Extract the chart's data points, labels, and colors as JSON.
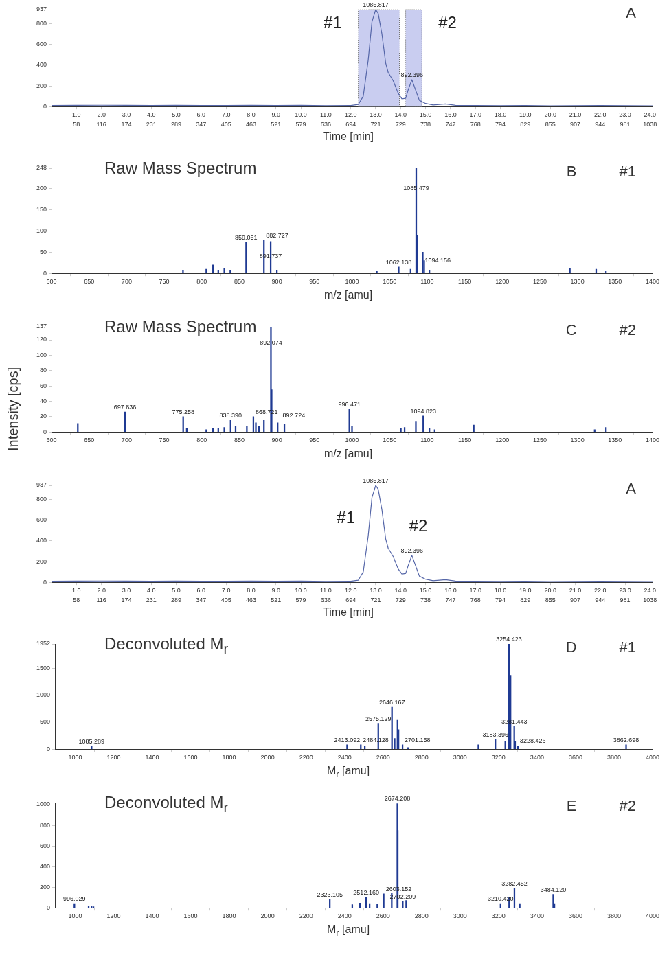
{
  "chart_data": [
    {
      "type": "line",
      "xlabel": "Time [min]",
      "xlim": [
        0,
        24.1
      ],
      "ylim": [
        0,
        937
      ],
      "yticks": [
        0,
        200,
        400,
        600,
        800,
        937
      ],
      "xticks": [
        {
          "value": 1,
          "label": "1.0"
        },
        {
          "value": 2,
          "label": "2.0"
        },
        {
          "value": 3,
          "label": "3.0"
        },
        {
          "value": 4,
          "label": "4.0"
        },
        {
          "value": 5,
          "label": "5.0"
        },
        {
          "value": 6,
          "label": "6.0"
        },
        {
          "value": 7,
          "label": "7.0"
        },
        {
          "value": 8,
          "label": "8.0"
        },
        {
          "value": 9,
          "label": "9.0"
        },
        {
          "value": 10,
          "label": "10.0"
        },
        {
          "value": 11,
          "label": "11.0"
        },
        {
          "value": 12,
          "label": "12.0"
        },
        {
          "value": 13,
          "label": "13.0"
        },
        {
          "value": 14,
          "label": "14.0"
        },
        {
          "value": 15,
          "label": "15.0"
        },
        {
          "value": 16,
          "label": "16.0"
        },
        {
          "value": 17,
          "label": "17.0"
        },
        {
          "value": 18,
          "label": "18.0"
        },
        {
          "value": 19,
          "label": "19.0"
        },
        {
          "value": 20,
          "label": "20.0"
        },
        {
          "value": 21,
          "label": "21.0"
        },
        {
          "value": 22,
          "label": "22.0"
        },
        {
          "value": 23,
          "label": "23.0"
        },
        {
          "value": 24,
          "label": "24.0"
        }
      ],
      "series": [
        {
          "color": "#5566a8",
          "x": [
            0,
            1,
            2,
            3,
            4,
            5,
            6,
            7,
            8,
            9,
            10,
            11,
            12,
            12.3,
            12.5,
            12.7,
            12.85,
            13.0,
            13.1,
            13.25,
            13.4,
            13.5,
            13.7,
            13.9,
            14.05,
            14.2,
            14.3,
            14.45,
            14.6,
            14.75,
            15.0,
            15.3,
            15.8,
            16.2,
            17,
            18,
            19,
            20,
            21,
            22,
            23,
            24.1
          ],
          "values": [
            10,
            12,
            13,
            12,
            11,
            12,
            11,
            10,
            12,
            10,
            12,
            9,
            10,
            20,
            100,
            450,
            820,
            937,
            900,
            700,
            420,
            330,
            250,
            130,
            75,
            80,
            160,
            260,
            160,
            60,
            30,
            15,
            25,
            12,
            10,
            9,
            10,
            8,
            9,
            10,
            9,
            8
          ]
        }
      ],
      "bands": [
        {
          "axis": "x",
          "from": 12.3,
          "to": 13.95,
          "label": "#1",
          "color": "#c9cdf0"
        },
        {
          "axis": "x",
          "from": 14.2,
          "to": 14.85,
          "label": "#2",
          "color": "#c9cdf0"
        }
      ],
      "annotations": [
        "A",
        {
          "text": "1085.817",
          "x": 13.0,
          "y": 937
        },
        {
          "text": "892.396",
          "x": 14.45,
          "y": 260
        },
        "58",
        "116",
        "174",
        "231",
        "289",
        "347",
        "405",
        "463",
        "521",
        "579",
        "636",
        "694",
        "721",
        "729",
        "738",
        "747",
        "768",
        "794",
        "829",
        "855",
        "907",
        "944",
        "981",
        "1038"
      ]
    },
    {
      "type": "bar",
      "title": "Raw Mass Spectrum",
      "xlabel": "m/z [amu]",
      "xlim": [
        600,
        1400
      ],
      "ylim": [
        0,
        248
      ],
      "yticks": [
        0,
        50,
        100,
        150,
        200,
        248
      ],
      "xticks": [
        600,
        650,
        700,
        750,
        800,
        850,
        900,
        950,
        1000,
        1050,
        1100,
        1150,
        1200,
        1250,
        1300,
        1350,
        1400
      ],
      "series": [
        {
          "color": "#1f3a93",
          "x": [
            775,
            806,
            815,
            822,
            830,
            838,
            859.051,
            882.727,
            891.737,
            900,
            1033,
            1062.138,
            1078,
            1085.479,
            1087,
            1094.156,
            1096,
            1103,
            1290,
            1325,
            1338
          ],
          "values": [
            8,
            10,
            20,
            8,
            12,
            8,
            73,
            78,
            75,
            8,
            5,
            15,
            10,
            248,
            90,
            50,
            30,
            8,
            12,
            10,
            5
          ]
        }
      ],
      "annotations": [
        "B",
        "#1",
        {
          "text": "859.051",
          "x": 859.051,
          "y": 73
        },
        {
          "text": "882.727",
          "x": 882.727,
          "y": 78
        },
        {
          "text": "891.737",
          "x": 891.737,
          "y": 30
        },
        {
          "text": "1062.138",
          "x": 1062.138,
          "y": 15
        },
        {
          "text": "1085.479",
          "x": 1085.479,
          "y": 190
        },
        {
          "text": "1094.156",
          "x": 1094.156,
          "y": 20
        }
      ]
    },
    {
      "type": "bar",
      "title": "Raw Mass Spectrum",
      "ylabel": "Intensity [cps]",
      "xlabel": "m/z [amu]",
      "xlim": [
        600,
        1400
      ],
      "ylim": [
        0,
        137
      ],
      "yticks": [
        0,
        20,
        40,
        60,
        80,
        100,
        120,
        137
      ],
      "xticks": [
        600,
        650,
        700,
        750,
        800,
        850,
        900,
        950,
        1000,
        1050,
        1100,
        1150,
        1200,
        1250,
        1300,
        1350,
        1400
      ],
      "series": [
        {
          "color": "#1f3a93",
          "x": [
            635,
            697.836,
            775.258,
            780,
            806,
            815,
            822,
            830,
            838.39,
            845,
            860,
            868.721,
            872,
            876,
            882.724,
            892.074,
            893,
            901,
            910,
            996.471,
            1000,
            1065,
            1070,
            1085,
            1094.823,
            1103,
            1110,
            1162,
            1323,
            1338
          ],
          "values": [
            11,
            26,
            20,
            5,
            3,
            5,
            5,
            6,
            15,
            7,
            7,
            20,
            12,
            8,
            15,
            137,
            55,
            12,
            10,
            30,
            8,
            5,
            6,
            14,
            21,
            5,
            3,
            9,
            3,
            6
          ]
        }
      ],
      "annotations": [
        "C",
        "#2",
        {
          "text": "697.836",
          "x": 697.836,
          "y": 26
        },
        {
          "text": "775.258",
          "x": 775.258,
          "y": 20
        },
        {
          "text": "838.390",
          "x": 838.39,
          "y": 15
        },
        {
          "text": "868.721",
          "x": 868.721,
          "y": 20
        },
        {
          "text": "892.074",
          "x": 892.074,
          "y": 110
        },
        {
          "text": "892.724",
          "x": 905,
          "y": 15
        },
        {
          "text": "996.471",
          "x": 996.471,
          "y": 30
        },
        {
          "text": "1094.823",
          "x": 1094.823,
          "y": 21
        }
      ]
    },
    {
      "type": "line",
      "xlabel": "Time [min]",
      "xlim": [
        0,
        24.1
      ],
      "ylim": [
        0,
        937
      ],
      "yticks": [
        0,
        200,
        400,
        600,
        800,
        937
      ],
      "xticks": [
        {
          "value": 1,
          "label": "1.0"
        },
        {
          "value": 2,
          "label": "2.0"
        },
        {
          "value": 3,
          "label": "3.0"
        },
        {
          "value": 4,
          "label": "4.0"
        },
        {
          "value": 5,
          "label": "5.0"
        },
        {
          "value": 6,
          "label": "6.0"
        },
        {
          "value": 7,
          "label": "7.0"
        },
        {
          "value": 8,
          "label": "8.0"
        },
        {
          "value": 9,
          "label": "9.0"
        },
        {
          "value": 10,
          "label": "10.0"
        },
        {
          "value": 11,
          "label": "11.0"
        },
        {
          "value": 12,
          "label": "12.0"
        },
        {
          "value": 13,
          "label": "13.0"
        },
        {
          "value": 14,
          "label": "14.0"
        },
        {
          "value": 15,
          "label": "15.0"
        },
        {
          "value": 16,
          "label": "16.0"
        },
        {
          "value": 17,
          "label": "17.0"
        },
        {
          "value": 18,
          "label": "18.0"
        },
        {
          "value": 19,
          "label": "19.0"
        },
        {
          "value": 20,
          "label": "20.0"
        },
        {
          "value": 21,
          "label": "21.0"
        },
        {
          "value": 22,
          "label": "22.0"
        },
        {
          "value": 23,
          "label": "23.0"
        },
        {
          "value": 24,
          "label": "24.0"
        }
      ],
      "series": [
        {
          "color": "#5566a8",
          "x": [
            0,
            1,
            2,
            3,
            4,
            5,
            6,
            7,
            8,
            9,
            10,
            11,
            12,
            12.3,
            12.5,
            12.7,
            12.85,
            13.0,
            13.1,
            13.25,
            13.4,
            13.5,
            13.7,
            13.9,
            14.05,
            14.2,
            14.3,
            14.45,
            14.6,
            14.75,
            15.0,
            15.3,
            15.8,
            16.2,
            17,
            18,
            19,
            20,
            21,
            22,
            23,
            24.1
          ],
          "values": [
            10,
            12,
            13,
            12,
            11,
            12,
            11,
            10,
            12,
            10,
            12,
            9,
            10,
            20,
            100,
            450,
            820,
            937,
            900,
            700,
            420,
            330,
            250,
            130,
            80,
            85,
            160,
            260,
            160,
            60,
            30,
            15,
            25,
            12,
            10,
            9,
            10,
            8,
            9,
            10,
            9,
            8
          ]
        }
      ],
      "annotations": [
        "A",
        {
          "text": "1085.817",
          "x": 13.0,
          "y": 937
        },
        {
          "text": "892.396",
          "x": 14.45,
          "y": 260
        },
        {
          "text": "#1",
          "x": 13.0,
          "y": 937
        },
        {
          "text": "#2",
          "x": 14.45,
          "y": 260
        },
        "58",
        "116",
        "174",
        "231",
        "289",
        "347",
        "405",
        "463",
        "521",
        "579",
        "636",
        "694",
        "721",
        "729",
        "738",
        "747",
        "768",
        "794",
        "829",
        "855",
        "907",
        "944",
        "981",
        "1038"
      ]
    },
    {
      "type": "bar",
      "title": "Deconvoluted M$_{r}$",
      "xlabel": "M$_{r}$ [amu]",
      "xlim": [
        895,
        4000
      ],
      "ylim": [
        0,
        1952
      ],
      "yticks": [
        0,
        500,
        1000,
        1500,
        1952
      ],
      "xticks": [
        1000,
        1200,
        1400,
        1600,
        1800,
        2000,
        2200,
        2400,
        2600,
        2800,
        3000,
        3200,
        3400,
        3600,
        3800,
        4000
      ],
      "series": [
        {
          "color": "#1f3a93",
          "x": [
            1085.289,
            2413.092,
            2484.128,
            2505,
            2575.129,
            2646.167,
            2660,
            2675,
            2680,
            2701.158,
            2730,
            3095,
            3183.396,
            3235,
            3254.423,
            3262,
            3281.443,
            3286,
            3300,
            3862.698
          ],
          "values": [
            50,
            80,
            80,
            60,
            480,
            780,
            200,
            550,
            360,
            80,
            30,
            80,
            180,
            150,
            1952,
            1370,
            420,
            150,
            60,
            80
          ]
        }
      ],
      "annotations": [
        "D",
        "#1",
        {
          "text": "1085.289",
          "x": 1085.289,
          "y": 50
        },
        {
          "text": "2413.092",
          "x": 2413.092,
          "y": 80
        },
        {
          "text": "2484.128",
          "x": 2484.128,
          "y": 80
        },
        {
          "text": "2575.129",
          "x": 2575.129,
          "y": 480
        },
        {
          "text": "2646.167",
          "x": 2646.167,
          "y": 780
        },
        {
          "text": "2701.158",
          "x": 2701.158,
          "y": 80
        },
        {
          "text": "3183.396",
          "x": 3183.396,
          "y": 180
        },
        {
          "text": "3254.423",
          "x": 3254.423,
          "y": 1952
        },
        {
          "text": "3281.443",
          "x": 3281.443,
          "y": 420
        },
        {
          "text": "3228.426",
          "x": 3300,
          "y": 60
        },
        {
          "text": "3862.698",
          "x": 3862.698,
          "y": 80
        }
      ]
    },
    {
      "type": "bar",
      "title": "Deconvoluted M$_{r}$",
      "xlabel": "M$_{r}$ [amu]",
      "xlim": [
        895,
        4000
      ],
      "ylim": [
        0,
        1020
      ],
      "yticks": [
        0,
        200,
        400,
        600,
        800,
        1000
      ],
      "xticks": [
        1000,
        1200,
        1400,
        1600,
        1800,
        2000,
        2200,
        2400,
        2600,
        2800,
        3000,
        3200,
        3400,
        3600,
        3800,
        4000
      ],
      "series": [
        {
          "color": "#1f3a93",
          "x": [
            996.029,
            1070,
            1085,
            1095,
            2323.105,
            2440,
            2480,
            2512.16,
            2530,
            2570,
            2603.152,
            2645,
            2674.208,
            2676,
            2702.209,
            2720,
            3210.42,
            3255,
            3282.452,
            3310,
            3484.12,
            3490
          ],
          "values": [
            40,
            15,
            15,
            10,
            80,
            30,
            45,
            100,
            40,
            35,
            135,
            140,
            1010,
            750,
            60,
            70,
            40,
            100,
            185,
            40,
            130,
            40
          ]
        }
      ],
      "annotations": [
        "E",
        "#2",
        {
          "text": "996.029",
          "x": 996.029,
          "y": 40
        },
        {
          "text": "2323.105",
          "x": 2323.105,
          "y": 80
        },
        {
          "text": "2512.160",
          "x": 2512.16,
          "y": 100
        },
        {
          "text": "2603.152",
          "x": 2603.152,
          "y": 135
        },
        {
          "text": "2674.208",
          "x": 2674.208,
          "y": 1010
        },
        {
          "text": "2702.209",
          "x": 2702.209,
          "y": 60
        },
        {
          "text": "3210.420",
          "x": 3210.42,
          "y": 40
        },
        {
          "text": "3282.452",
          "x": 3282.452,
          "y": 185
        },
        {
          "text": "3484.120",
          "x": 3484.12,
          "y": 130
        }
      ]
    }
  ]
}
